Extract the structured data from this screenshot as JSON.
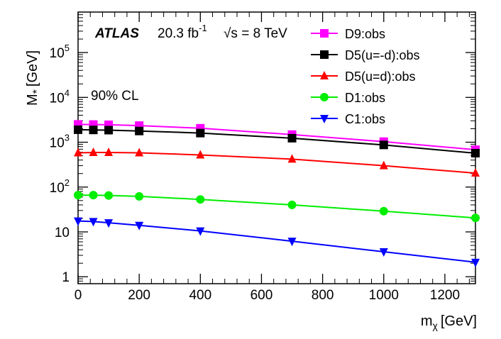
{
  "chart_data": {
    "type": "line",
    "title": "",
    "xlabel": "m",
    "xlabel_subscript": "χ",
    "xlabel_unit": "[GeV]",
    "ylabel": "M",
    "ylabel_subscript": "*",
    "ylabel_unit": "[GeV]",
    "xlim": [
      0,
      1300
    ],
    "ylim": [
      0.7,
      800000
    ],
    "yscale": "log",
    "grid": false,
    "legend_position": "top-right",
    "x_ticks": [
      "0",
      "200",
      "400",
      "600",
      "800",
      "1000",
      "1200"
    ],
    "x_tick_values": [
      0,
      200,
      400,
      600,
      800,
      1000,
      1200
    ],
    "y_ticks": [
      {
        "value": 1,
        "mantissa": "1",
        "exp": ""
      },
      {
        "value": 10,
        "mantissa": "10",
        "exp": ""
      },
      {
        "value": 100,
        "mantissa": "10",
        "exp": "2"
      },
      {
        "value": 1000,
        "mantissa": "10",
        "exp": "3"
      },
      {
        "value": 10000,
        "mantissa": "10",
        "exp": "4"
      },
      {
        "value": 100000,
        "mantissa": "10",
        "exp": "5"
      }
    ],
    "annotations": {
      "experiment": "ATLAS",
      "lumi": "20.3 fb",
      "lumi_exp": "-1",
      "energy": "√s = 8 TeV",
      "cl": "90% CL"
    },
    "series": [
      {
        "name": "D9:obs",
        "color": "#ff00ff",
        "marker": "square",
        "x": [
          0,
          50,
          100,
          200,
          400,
          700,
          1000,
          1300
        ],
        "values": [
          2500,
          2480,
          2450,
          2350,
          2050,
          1480,
          1030,
          680
        ]
      },
      {
        "name": "D5(u=-d):obs",
        "color": "#000000",
        "marker": "square",
        "x": [
          0,
          50,
          100,
          200,
          400,
          700,
          1000,
          1300
        ],
        "values": [
          1900,
          1880,
          1860,
          1780,
          1600,
          1230,
          870,
          570
        ]
      },
      {
        "name": "D5(u=d):obs",
        "color": "#ff0000",
        "marker": "triangle-up",
        "x": [
          0,
          50,
          100,
          200,
          400,
          700,
          1000,
          1300
        ],
        "values": [
          580,
          590,
          590,
          580,
          520,
          420,
          300,
          205
        ]
      },
      {
        "name": "D1:obs",
        "color": "#00ee00",
        "marker": "circle",
        "x": [
          0,
          50,
          100,
          200,
          400,
          700,
          1000,
          1300
        ],
        "values": [
          66,
          66,
          65,
          62,
          53,
          40,
          29,
          20.5
        ]
      },
      {
        "name": "C1:obs",
        "color": "#0000ff",
        "marker": "triangle-down",
        "x": [
          0,
          50,
          100,
          200,
          400,
          700,
          1000,
          1300
        ],
        "values": [
          17.5,
          17,
          16,
          14,
          10.5,
          6.2,
          3.6,
          2.1
        ]
      }
    ]
  }
}
